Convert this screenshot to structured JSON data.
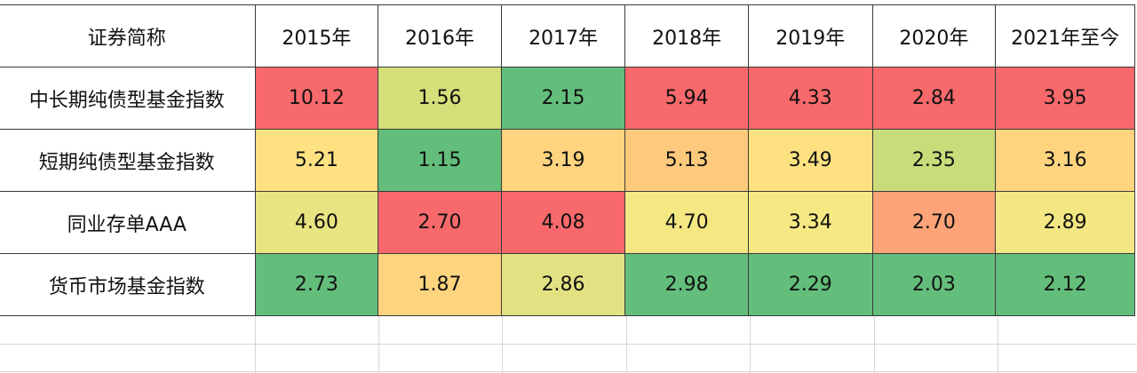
{
  "chart_data": {
    "type": "table",
    "corner_header": "证券简称",
    "columns": [
      "2015年",
      "2016年",
      "2017年",
      "2018年",
      "2019年",
      "2020年",
      "2021年至今"
    ],
    "rows": [
      {
        "name": "中长期纯债型基金指数",
        "values": [
          "10.12",
          "1.56",
          "2.15",
          "5.94",
          "4.33",
          "2.84",
          "3.95"
        ],
        "colors": [
          "#f8696b",
          "#d4df7a",
          "#63be7b",
          "#f8696b",
          "#f8696b",
          "#f8696b",
          "#f8696b"
        ]
      },
      {
        "name": "短期纯债型基金指数",
        "values": [
          "5.21",
          "1.15",
          "3.19",
          "5.13",
          "3.49",
          "2.35",
          "3.16"
        ],
        "colors": [
          "#fee282",
          "#63be7b",
          "#fed47f",
          "#fdc97d",
          "#fee282",
          "#c8dd7a",
          "#fed47f"
        ]
      },
      {
        "name": "同业存单AAA",
        "values": [
          "4.60",
          "2.70",
          "4.08",
          "4.70",
          "3.34",
          "2.70",
          "2.89"
        ],
        "colors": [
          "#e9e482",
          "#f8696b",
          "#f8696b",
          "#f5e883",
          "#f6e883",
          "#fca477",
          "#f3e783"
        ]
      },
      {
        "name": "货币市场基金指数",
        "values": [
          "2.73",
          "1.87",
          "2.86",
          "2.98",
          "2.29",
          "2.03",
          "2.12"
        ],
        "colors": [
          "#63be7b",
          "#fed47f",
          "#e3e282",
          "#63be7b",
          "#63be7b",
          "#63be7b",
          "#63be7b"
        ]
      }
    ]
  }
}
